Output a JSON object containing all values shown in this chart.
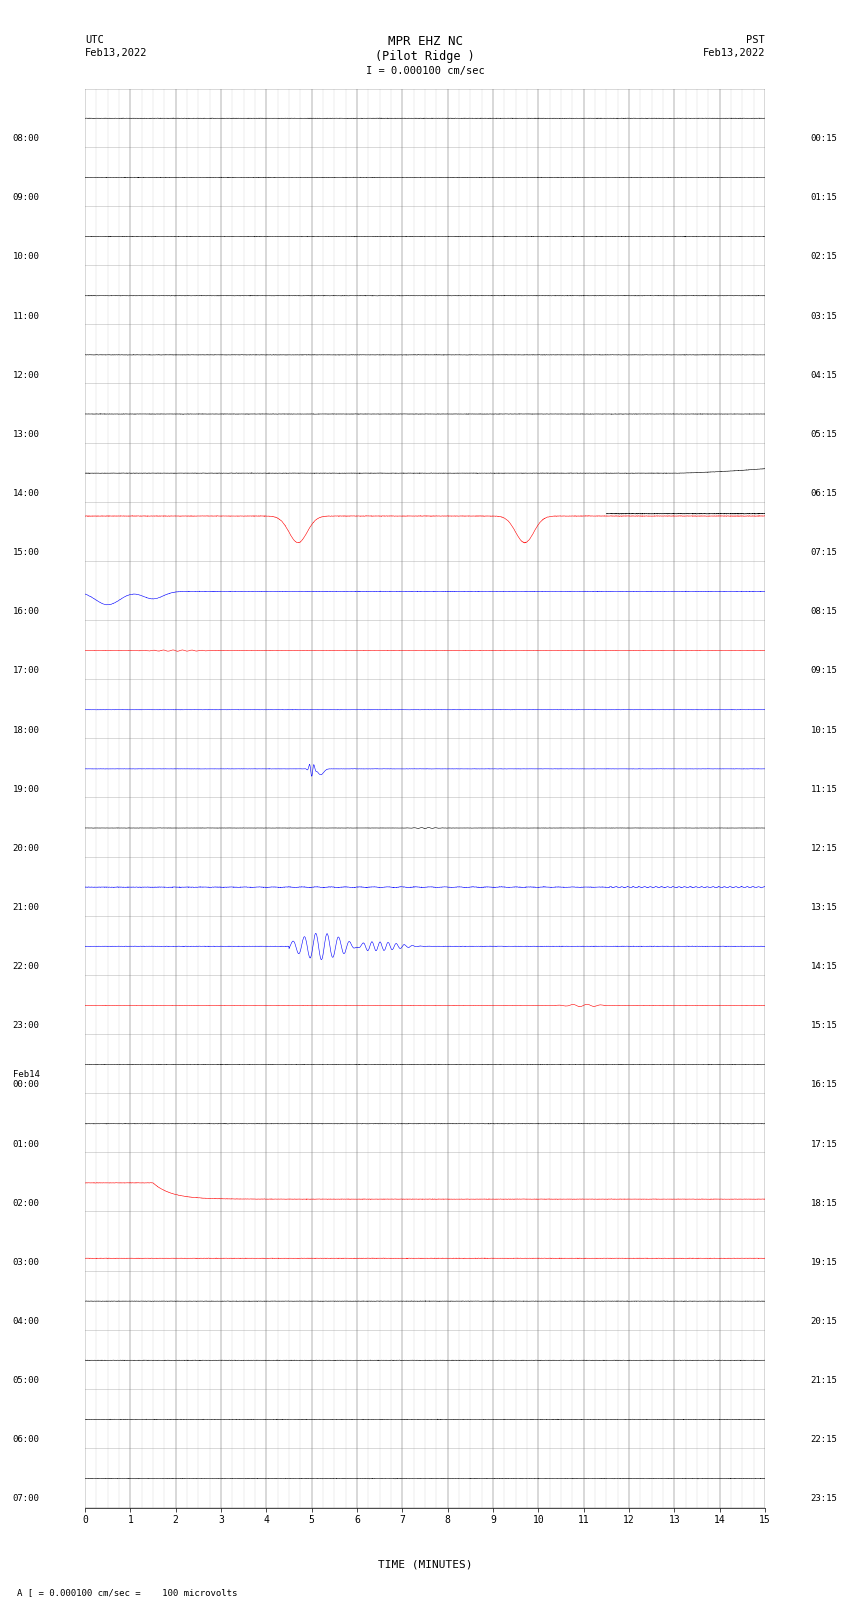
{
  "title_line1": "MPR EHZ NC",
  "title_line2": "(Pilot Ridge )",
  "scale_label": "I = 0.000100 cm/sec",
  "utc_label": "UTC\nFeb13,2022",
  "pst_label": "PST\nFeb13,2022",
  "footer_label": "A [ = 0.000100 cm/sec =    100 microvolts",
  "xlabel": "TIME (MINUTES)",
  "num_rows": 24,
  "fig_width": 8.5,
  "fig_height": 16.13,
  "dpi": 100,
  "utc_times": [
    "08:00",
    "09:00",
    "10:00",
    "11:00",
    "12:00",
    "13:00",
    "14:00",
    "15:00",
    "16:00",
    "17:00",
    "18:00",
    "19:00",
    "20:00",
    "21:00",
    "22:00",
    "23:00",
    "Feb14\n00:00",
    "01:00",
    "02:00",
    "03:00",
    "04:00",
    "05:00",
    "06:00",
    "07:00"
  ],
  "pst_times": [
    "00:15",
    "01:15",
    "02:15",
    "03:15",
    "04:15",
    "05:15",
    "06:15",
    "07:15",
    "08:15",
    "09:15",
    "10:15",
    "11:15",
    "12:15",
    "13:15",
    "14:15",
    "15:15",
    "16:15",
    "17:15",
    "18:15",
    "19:15",
    "20:15",
    "21:15",
    "22:15",
    "23:15"
  ]
}
